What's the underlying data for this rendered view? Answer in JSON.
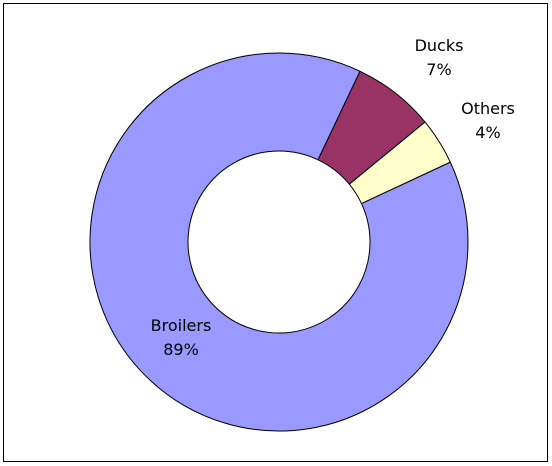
{
  "chart_data": {
    "type": "pie",
    "variant": "donut",
    "categories": [
      "Broilers",
      "Ducks",
      "Others"
    ],
    "values": [
      89,
      7,
      4
    ],
    "labels": [
      {
        "name": "Broilers",
        "pct": "89%"
      },
      {
        "name": "Ducks",
        "pct": "7%"
      },
      {
        "name": "Others",
        "pct": "4%"
      }
    ],
    "colors": [
      "#9999ff",
      "#993366",
      "#ffffcc"
    ],
    "edge_color": "#000000",
    "title": "",
    "legend": "none"
  }
}
